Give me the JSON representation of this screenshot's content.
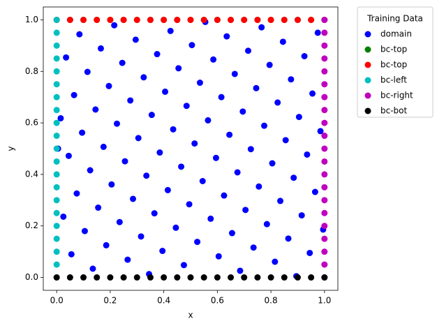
{
  "chart_data": {
    "type": "scatter",
    "xlabel": "x",
    "ylabel": "y",
    "legend_title": "Training Data",
    "legend": "outside upper right",
    "grid": false,
    "xlim": [
      -0.05,
      1.05
    ],
    "ylim": [
      -0.05,
      1.05
    ],
    "xticks": [
      {
        "value": 0,
        "label": "0.0"
      },
      {
        "value": 0.2,
        "label": "0.2"
      },
      {
        "value": 0.4,
        "label": "0.4"
      },
      {
        "value": 0.6,
        "label": "0.6"
      },
      {
        "value": 0.8,
        "label": "0.8"
      },
      {
        "value": 1,
        "label": "1.0"
      }
    ],
    "yticks": [
      {
        "value": 0,
        "label": "0.0"
      },
      {
        "value": 0.2,
        "label": "0.2"
      },
      {
        "value": 0.4,
        "label": "0.4"
      },
      {
        "value": 0.6,
        "label": "0.6"
      },
      {
        "value": 0.8,
        "label": "0.8"
      },
      {
        "value": 1,
        "label": "1.0"
      }
    ],
    "series": [
      {
        "name": "domain",
        "color": "#0000ff",
        "x": [
          0.005,
          0.015,
          0.025,
          0.035,
          0.045,
          0.055,
          0.065,
          0.075,
          0.085,
          0.095,
          0.105,
          0.115,
          0.125,
          0.135,
          0.145,
          0.155,
          0.165,
          0.175,
          0.185,
          0.195,
          0.205,
          0.215,
          0.225,
          0.235,
          0.245,
          0.255,
          0.265,
          0.275,
          0.285,
          0.295,
          0.305,
          0.315,
          0.325,
          0.335,
          0.345,
          0.355,
          0.365,
          0.375,
          0.385,
          0.395,
          0.405,
          0.415,
          0.425,
          0.435,
          0.445,
          0.455,
          0.465,
          0.475,
          0.485,
          0.495,
          0.505,
          0.515,
          0.525,
          0.535,
          0.545,
          0.555,
          0.565,
          0.575,
          0.585,
          0.595,
          0.605,
          0.615,
          0.625,
          0.635,
          0.645,
          0.655,
          0.665,
          0.675,
          0.685,
          0.695,
          0.705,
          0.715,
          0.725,
          0.735,
          0.745,
          0.755,
          0.765,
          0.775,
          0.785,
          0.795,
          0.805,
          0.815,
          0.825,
          0.835,
          0.845,
          0.855,
          0.865,
          0.875,
          0.885,
          0.895,
          0.905,
          0.915,
          0.925,
          0.935,
          0.945,
          0.955,
          0.965,
          0.975,
          0.985,
          0.995
        ],
        "y": [
          0.5,
          0.618,
          0.236,
          0.854,
          0.472,
          0.09,
          0.708,
          0.326,
          0.944,
          0.562,
          0.18,
          0.798,
          0.416,
          0.034,
          0.652,
          0.271,
          0.889,
          0.507,
          0.125,
          0.743,
          0.361,
          0.979,
          0.597,
          0.215,
          0.833,
          0.451,
          0.069,
          0.687,
          0.305,
          0.923,
          0.541,
          0.159,
          0.777,
          0.395,
          0.013,
          0.631,
          0.249,
          0.867,
          0.485,
          0.103,
          0.721,
          0.339,
          0.957,
          0.575,
          0.193,
          0.812,
          0.43,
          0.048,
          0.666,
          0.284,
          0.902,
          0.52,
          0.138,
          0.756,
          0.374,
          0.992,
          0.61,
          0.228,
          0.846,
          0.464,
          0.082,
          0.7,
          0.318,
          0.936,
          0.554,
          0.172,
          0.79,
          0.408,
          0.026,
          0.644,
          0.262,
          0.88,
          0.498,
          0.116,
          0.735,
          0.353,
          0.971,
          0.589,
          0.207,
          0.825,
          0.443,
          0.061,
          0.679,
          0.297,
          0.915,
          0.533,
          0.151,
          0.769,
          0.387,
          0.005,
          0.623,
          0.241,
          0.859,
          0.477,
          0.095,
          0.714,
          0.332,
          0.95,
          0.568,
          0.186
        ]
      },
      {
        "name": "bc-top",
        "color": "#008000",
        "x": [
          0,
          0.05,
          0.1,
          0.15,
          0.2,
          0.25,
          0.3,
          0.35,
          0.4,
          0.45,
          0.5,
          0.55,
          0.6,
          0.65,
          0.7,
          0.75,
          0.8,
          0.85,
          0.9,
          0.95,
          1
        ],
        "y": [
          1,
          1,
          1,
          1,
          1,
          1,
          1,
          1,
          1,
          1,
          1,
          1,
          1,
          1,
          1,
          1,
          1,
          1,
          1,
          1,
          1
        ]
      },
      {
        "name": "bc-top",
        "color": "#ff0000",
        "x": [
          0,
          0.05,
          0.1,
          0.15,
          0.2,
          0.25,
          0.3,
          0.35,
          0.4,
          0.45,
          0.5,
          0.55,
          0.6,
          0.65,
          0.7,
          0.75,
          0.8,
          0.85,
          0.9,
          0.95,
          1
        ],
        "y": [
          1,
          1,
          1,
          1,
          1,
          1,
          1,
          1,
          1,
          1,
          1,
          1,
          1,
          1,
          1,
          1,
          1,
          1,
          1,
          1,
          1
        ]
      },
      {
        "name": "bc-left",
        "color": "#00bfbf",
        "x": [
          0,
          0,
          0,
          0,
          0,
          0,
          0,
          0,
          0,
          0,
          0,
          0,
          0,
          0,
          0,
          0,
          0,
          0,
          0,
          0,
          0
        ],
        "y": [
          0,
          0.05,
          0.1,
          0.15,
          0.2,
          0.25,
          0.3,
          0.35,
          0.4,
          0.45,
          0.5,
          0.55,
          0.6,
          0.65,
          0.7,
          0.75,
          0.8,
          0.85,
          0.9,
          0.95,
          1
        ]
      },
      {
        "name": "bc-right",
        "color": "#bf00bf",
        "x": [
          1,
          1,
          1,
          1,
          1,
          1,
          1,
          1,
          1,
          1,
          1,
          1,
          1,
          1,
          1,
          1,
          1,
          1,
          1,
          1,
          1
        ],
        "y": [
          0,
          0.05,
          0.1,
          0.15,
          0.2,
          0.25,
          0.3,
          0.35,
          0.4,
          0.45,
          0.5,
          0.55,
          0.6,
          0.65,
          0.7,
          0.75,
          0.8,
          0.85,
          0.9,
          0.95,
          1
        ]
      },
      {
        "name": "bc-bot",
        "color": "#000000",
        "x": [
          0,
          0.05,
          0.1,
          0.15,
          0.2,
          0.25,
          0.3,
          0.35,
          0.4,
          0.45,
          0.5,
          0.55,
          0.6,
          0.65,
          0.7,
          0.75,
          0.8,
          0.85,
          0.9,
          0.95,
          1
        ],
        "y": [
          0,
          0,
          0,
          0,
          0,
          0,
          0,
          0,
          0,
          0,
          0,
          0,
          0,
          0,
          0,
          0,
          0,
          0,
          0,
          0,
          0
        ]
      }
    ]
  }
}
